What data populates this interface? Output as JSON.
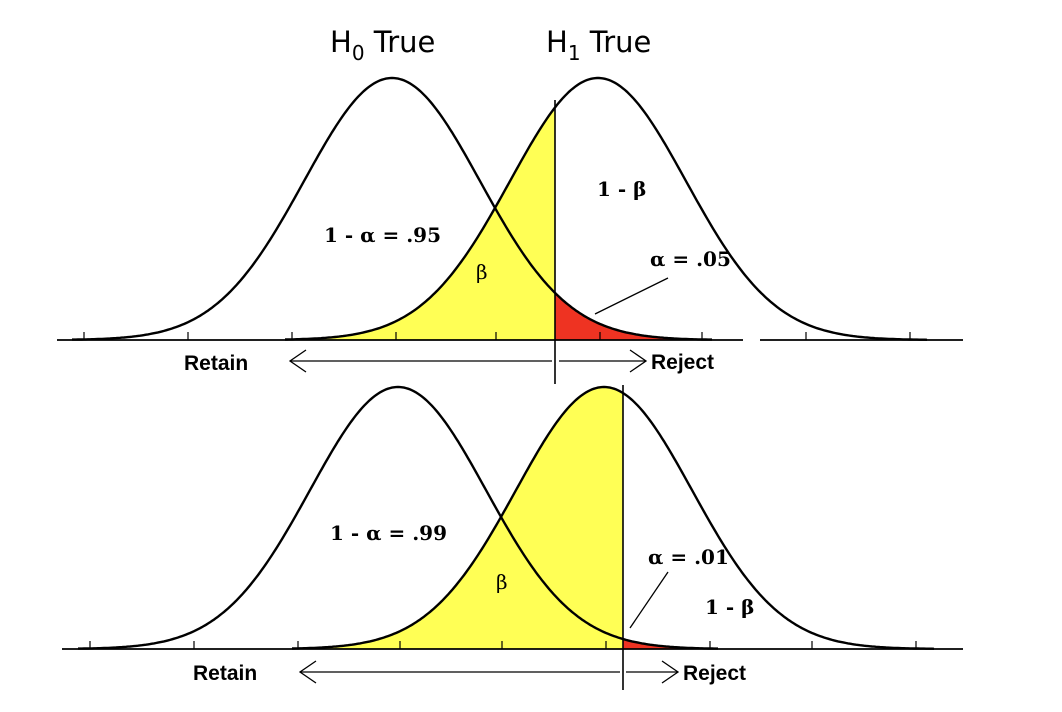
{
  "header": {
    "h0_label": "H",
    "h0_sub": "0",
    "h0_suffix": " True",
    "h1_label": "H",
    "h1_sub": "1",
    "h1_suffix": " True"
  },
  "colors": {
    "beta_region": "#ffff55",
    "alpha_region": "#ee3322",
    "lines": "#000000",
    "background": "#ffffff"
  },
  "panels": [
    {
      "one_minus_alpha_label": "1 - α =  .95",
      "beta_label": "β",
      "alpha_label": "α = .05",
      "power_label": "1 - β",
      "retain_label": "Retain",
      "reject_label": "Reject",
      "alpha_value": 0.05,
      "confidence_value": 0.95
    },
    {
      "one_minus_alpha_label": "1 - α = .99",
      "beta_label": "β",
      "alpha_label": "α = .01",
      "power_label": "1 - β",
      "retain_label": "Retain",
      "reject_label": "Reject",
      "alpha_value": 0.01,
      "confidence_value": 0.99
    }
  ]
}
